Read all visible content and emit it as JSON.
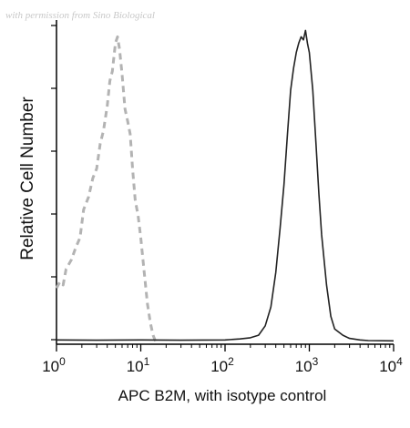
{
  "watermark": "with permission from Sino Biological",
  "chart_data": {
    "type": "line",
    "title": "",
    "xlabel": "APC B2M, with isotype control",
    "ylabel": "Relative Cell Number",
    "xscale": "log",
    "xlim": [
      1,
      10000
    ],
    "ylim": [
      0,
      1
    ],
    "grid": false,
    "legend": "none",
    "x_ticks": [
      {
        "value": 1,
        "base": "10",
        "exp": "0"
      },
      {
        "value": 10,
        "base": "10",
        "exp": "1"
      },
      {
        "value": 100,
        "base": "10",
        "exp": "2"
      },
      {
        "value": 1000,
        "base": "10",
        "exp": "3"
      },
      {
        "value": 10000,
        "base": "10",
        "exp": "4"
      }
    ],
    "series": [
      {
        "style": "dashed",
        "color": "#b3b3b3",
        "x": [
          1.0,
          1.1,
          1.2,
          1.3,
          1.5,
          1.7,
          1.9,
          2.1,
          2.4,
          2.7,
          3.0,
          3.3,
          3.6,
          4.0,
          4.3,
          4.6,
          5.0,
          5.3,
          5.6,
          6.0,
          6.5,
          7.0,
          7.5,
          8.0,
          8.6,
          9.3,
          10.0,
          11.0,
          12.0,
          13.0,
          14.0,
          15.0
        ],
        "y": [
          0.17,
          0.19,
          0.18,
          0.23,
          0.26,
          0.3,
          0.33,
          0.42,
          0.46,
          0.52,
          0.55,
          0.63,
          0.67,
          0.75,
          0.83,
          0.86,
          0.95,
          0.97,
          0.93,
          0.85,
          0.74,
          0.7,
          0.66,
          0.55,
          0.45,
          0.4,
          0.33,
          0.22,
          0.12,
          0.06,
          0.02,
          0.0
        ]
      },
      {
        "style": "solid",
        "color": "#222222",
        "x": [
          1.0,
          3.0,
          10.0,
          30.0,
          100.0,
          150.0,
          200.0,
          250.0,
          300.0,
          350.0,
          400.0,
          450.0,
          500.0,
          550.0,
          600.0,
          650.0,
          700.0,
          750.0,
          800.0,
          850.0,
          900.0,
          950.0,
          1000.0,
          1100.0,
          1200.0,
          1300.0,
          1400.0,
          1600.0,
          1800.0,
          2000.0,
          2500.0,
          3000.0,
          4000.0,
          5000.0,
          10000.0
        ],
        "y": [
          0.005,
          0.004,
          0.005,
          0.004,
          0.005,
          0.008,
          0.012,
          0.02,
          0.05,
          0.11,
          0.22,
          0.36,
          0.5,
          0.66,
          0.8,
          0.87,
          0.92,
          0.95,
          0.97,
          0.96,
          0.99,
          0.95,
          0.92,
          0.8,
          0.63,
          0.47,
          0.34,
          0.18,
          0.08,
          0.04,
          0.02,
          0.01,
          0.005,
          0.003,
          0.002
        ]
      }
    ]
  }
}
